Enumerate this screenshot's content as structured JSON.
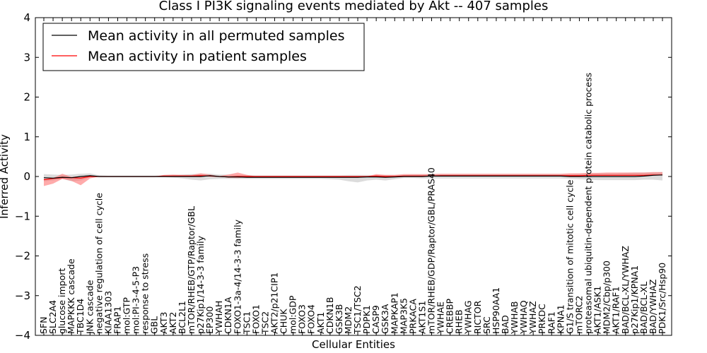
{
  "chart_data": {
    "type": "line",
    "title": "Class I PI3K signaling events mediated by Akt -- 407 samples",
    "xlabel": "Cellular Entities",
    "ylabel": "Inferred Activity",
    "ylim": [
      -4,
      4
    ],
    "yticks": [
      -4,
      -3,
      -2,
      -1,
      0,
      1,
      2,
      3,
      4
    ],
    "ytick_labels": [
      "−4",
      "−3",
      "−2",
      "−1",
      "0",
      "1",
      "2",
      "3",
      "4"
    ],
    "grid": false,
    "legend_position": "top-left",
    "colors": {
      "permuted": "#000000",
      "patient": "#ff0000",
      "patient_band": "#ff6666",
      "permuted_band": "#bfbfbf"
    },
    "categories": [
      "SFN",
      "SLC2A4",
      "glucose import",
      "MAPKKK cascade",
      "TBC1D4",
      "JNK cascade",
      "negative regulation of cell cycle",
      "KIAA1303",
      "FRAP1",
      "mol:GTP",
      "mol:PI-3-4-5-P3",
      "response to stress",
      "GBL",
      "AKT3",
      "AKT2",
      "BCL2L1",
      "mTOR/RHEB/GTP/Raptor/GBL",
      "p27Kip1/14-3-3 family",
      "EP300",
      "YWHAH",
      "CDKN1A",
      "FOXO1-3a-4/14-3-3 family",
      "TSC1",
      "FOXO1",
      "TSC2",
      "AKT2/p21CIP1",
      "CHUK",
      "mol:GDP",
      "FOXO3",
      "FOXO4",
      "AKT1",
      "CDKN1B",
      "GSK3B",
      "MDM2",
      "TSC1/TSC2",
      "PDPK1",
      "CASP9",
      "GSK3A",
      "MAPKAP1",
      "MAP3K5",
      "PRKACA",
      "AKT1S1",
      "mTOR/RHEB/GDP/Raptor/GBL/PRAS40",
      "YWHAE",
      "CREBBP",
      "RHEB",
      "YWHAG",
      "RICTOR",
      "SRC",
      "HSP90AA1",
      "BAD",
      "YWHAB",
      "YWHAQ",
      "YWHAZ",
      "PRKDC",
      "RAF1",
      "KPNA1",
      "G1/S transition of mitotic cell cycle",
      "mTORC2",
      "proteasomal ubiquitin-dependent protein catabolic process",
      "AKT1/ASK1",
      "MDM2/Cbp/p300",
      "AKT1/RAF1",
      "BAD/BCL-XL/YWHAZ",
      "p27Kip1/KPNA1",
      "BAD/BCL-XL",
      "BAD/YWHAZ",
      "PDK1/Src/Hsp90"
    ],
    "series": [
      {
        "name": "Mean activity in all permuted samples",
        "color": "#000000",
        "values": [
          -0.03,
          -0.04,
          -0.02,
          -0.03,
          0.0,
          0.02,
          0.0,
          0.0,
          0.0,
          0.0,
          0.0,
          0.0,
          0.0,
          0.0,
          0.0,
          0.0,
          0.0,
          0.0,
          0.02,
          0.0,
          -0.01,
          -0.01,
          -0.02,
          -0.02,
          -0.02,
          -0.02,
          -0.02,
          -0.02,
          -0.02,
          -0.02,
          -0.02,
          -0.02,
          -0.02,
          -0.02,
          -0.02,
          -0.01,
          -0.01,
          -0.02,
          -0.01,
          0.0,
          0.0,
          0.0,
          0.01,
          0.01,
          0.01,
          0.01,
          0.01,
          0.01,
          0.01,
          0.01,
          0.01,
          0.01,
          0.01,
          0.01,
          0.01,
          0.01,
          0.01,
          0.0,
          0.0,
          0.0,
          0.0,
          0.0,
          0.0,
          0.0,
          0.0,
          0.01,
          0.03,
          0.04
        ],
        "band_lower": [
          -0.12,
          -0.1,
          -0.06,
          -0.12,
          -0.1,
          -0.02,
          -0.02,
          -0.02,
          -0.02,
          -0.02,
          -0.02,
          -0.02,
          -0.02,
          -0.02,
          -0.03,
          -0.05,
          -0.08,
          -0.1,
          -0.07,
          -0.06,
          -0.06,
          -0.06,
          -0.06,
          -0.06,
          -0.06,
          -0.06,
          -0.06,
          -0.06,
          -0.06,
          -0.06,
          -0.06,
          -0.07,
          -0.08,
          -0.12,
          -0.15,
          -0.1,
          -0.08,
          -0.1,
          -0.07,
          -0.04,
          -0.04,
          -0.05,
          -0.05,
          -0.05,
          -0.05,
          -0.05,
          -0.05,
          -0.05,
          -0.05,
          -0.05,
          -0.05,
          -0.05,
          -0.05,
          -0.05,
          -0.05,
          -0.05,
          -0.05,
          -0.06,
          -0.07,
          -0.08,
          -0.09,
          -0.09,
          -0.09,
          -0.09,
          -0.09,
          -0.08,
          -0.08,
          -0.1
        ],
        "band_upper": [
          0.06,
          0.05,
          0.04,
          0.05,
          0.07,
          0.08,
          0.03,
          0.02,
          0.02,
          0.02,
          0.02,
          0.02,
          0.02,
          0.02,
          0.03,
          0.05,
          0.06,
          0.07,
          0.07,
          0.05,
          0.05,
          0.04,
          0.04,
          0.03,
          0.03,
          0.03,
          0.03,
          0.03,
          0.03,
          0.03,
          0.03,
          0.03,
          0.03,
          0.04,
          0.04,
          0.04,
          0.04,
          0.04,
          0.04,
          0.04,
          0.05,
          0.05,
          0.06,
          0.06,
          0.06,
          0.06,
          0.06,
          0.06,
          0.06,
          0.06,
          0.06,
          0.06,
          0.06,
          0.06,
          0.06,
          0.06,
          0.06,
          0.06,
          0.07,
          0.07,
          0.08,
          0.08,
          0.08,
          0.09,
          0.1,
          0.1,
          0.1,
          0.11
        ]
      },
      {
        "name": "Mean activity in patient samples",
        "color": "#ff0000",
        "values": [
          -0.08,
          -0.05,
          -0.03,
          -0.03,
          -0.04,
          0.0,
          0.0,
          0.0,
          0.0,
          0.0,
          0.0,
          0.0,
          0.0,
          0.01,
          0.01,
          0.01,
          0.01,
          0.02,
          0.01,
          0.0,
          -0.01,
          0.0,
          0.0,
          0.0,
          0.0,
          0.0,
          0.0,
          0.0,
          0.0,
          0.0,
          0.0,
          0.0,
          0.0,
          0.0,
          0.0,
          0.0,
          0.01,
          0.0,
          0.0,
          0.01,
          0.01,
          0.01,
          0.01,
          0.02,
          0.02,
          0.02,
          0.02,
          0.02,
          0.02,
          0.02,
          0.02,
          0.02,
          0.02,
          0.02,
          0.02,
          0.02,
          0.02,
          0.02,
          0.02,
          0.03,
          0.03,
          0.03,
          0.03,
          0.03,
          0.03,
          0.03,
          0.04,
          0.04
        ],
        "band_lower": [
          -0.16,
          -0.13,
          -0.03,
          -0.08,
          -0.18,
          -0.05,
          0.0,
          0.0,
          0.0,
          0.0,
          0.0,
          0.0,
          0.0,
          0.0,
          0.0,
          0.0,
          0.0,
          0.0,
          0.0,
          0.0,
          -0.02,
          -0.04,
          -0.01,
          0.0,
          0.0,
          0.0,
          0.0,
          0.0,
          0.0,
          0.0,
          0.0,
          0.0,
          0.0,
          0.0,
          0.0,
          0.0,
          0.0,
          0.0,
          0.0,
          0.0,
          0.0,
          0.0,
          0.0,
          0.0,
          0.0,
          0.0,
          0.0,
          0.0,
          0.0,
          0.0,
          0.0,
          0.0,
          0.0,
          0.0,
          0.0,
          0.0,
          0.0,
          0.0,
          0.0,
          0.0,
          0.0,
          0.0,
          0.0,
          0.0,
          0.0,
          0.0,
          0.0,
          0.0
        ],
        "band_upper": [
          0.02,
          0.01,
          0.1,
          0.02,
          0.04,
          0.03,
          0.0,
          0.0,
          0.0,
          0.0,
          0.0,
          0.0,
          0.0,
          0.03,
          0.04,
          0.03,
          0.03,
          0.06,
          0.04,
          0.01,
          0.06,
          0.1,
          0.04,
          0.0,
          0.0,
          0.0,
          0.0,
          0.0,
          0.0,
          0.0,
          0.0,
          0.0,
          0.0,
          0.0,
          0.0,
          0.0,
          0.05,
          0.04,
          0.04,
          0.05,
          0.05,
          0.05,
          0.05,
          0.05,
          0.05,
          0.05,
          0.05,
          0.05,
          0.05,
          0.05,
          0.05,
          0.05,
          0.05,
          0.05,
          0.05,
          0.05,
          0.05,
          0.06,
          0.06,
          0.06,
          0.06,
          0.07,
          0.07,
          0.07,
          0.07,
          0.07,
          0.07,
          0.07
        ]
      }
    ]
  }
}
